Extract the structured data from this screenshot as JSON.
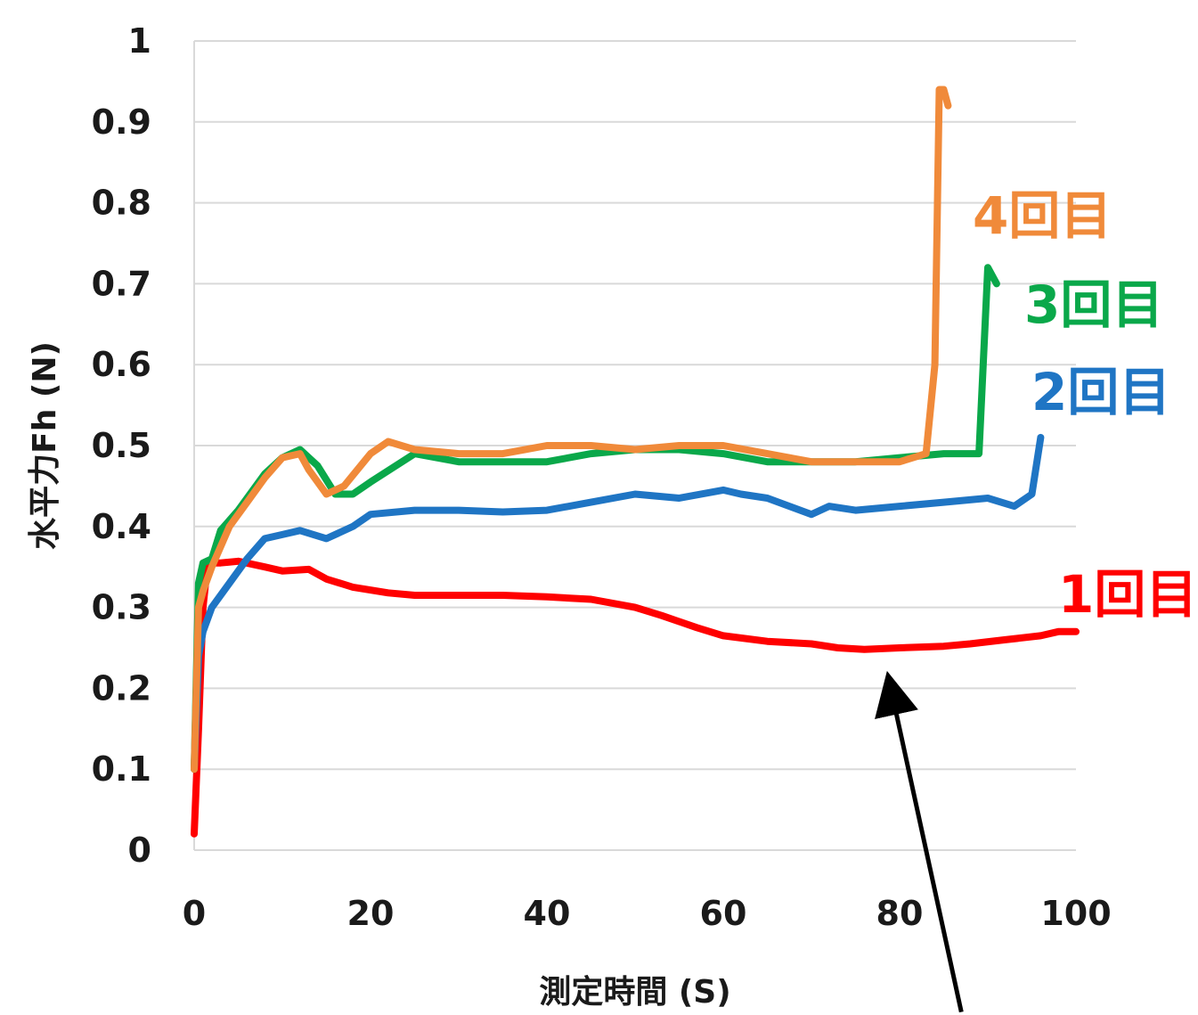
{
  "chart_data": {
    "type": "line",
    "title": "",
    "xlabel": "測定時間 (S)",
    "ylabel": "水平力Fh (N)",
    "xlim": [
      0,
      100
    ],
    "ylim": [
      0,
      1
    ],
    "x_ticks": [
      "0",
      "20",
      "40",
      "60",
      "80",
      "100"
    ],
    "y_ticks": [
      "0",
      "0.1",
      "0.2",
      "0.3",
      "0.4",
      "0.5",
      "0.6",
      "0.7",
      "0.8",
      "0.9",
      "1"
    ],
    "grid": true,
    "legend": "none",
    "series": [
      {
        "name": "1回目",
        "color": "#ff0000",
        "x": [
          0,
          0.5,
          1,
          1.5,
          2,
          3,
          5,
          8,
          10,
          13,
          15,
          18,
          22,
          25,
          30,
          35,
          40,
          45,
          50,
          53,
          57,
          60,
          65,
          70,
          73,
          76,
          80,
          85,
          88,
          92,
          96,
          98,
          100
        ],
        "y": [
          0.02,
          0.15,
          0.3,
          0.35,
          0.355,
          0.355,
          0.357,
          0.35,
          0.345,
          0.347,
          0.335,
          0.325,
          0.318,
          0.315,
          0.315,
          0.315,
          0.313,
          0.31,
          0.3,
          0.29,
          0.275,
          0.265,
          0.258,
          0.255,
          0.25,
          0.248,
          0.25,
          0.252,
          0.255,
          0.26,
          0.265,
          0.27,
          0.27
        ]
      },
      {
        "name": "2回目",
        "color": "#1f75c4",
        "x": [
          0,
          0.5,
          1,
          2,
          4,
          6,
          8,
          10,
          12,
          15,
          18,
          20,
          25,
          30,
          35,
          40,
          45,
          50,
          55,
          60,
          62,
          65,
          70,
          72,
          75,
          80,
          85,
          90,
          93,
          95,
          96
        ],
        "y": [
          0.1,
          0.24,
          0.27,
          0.3,
          0.33,
          0.36,
          0.385,
          0.39,
          0.395,
          0.385,
          0.4,
          0.415,
          0.42,
          0.42,
          0.418,
          0.42,
          0.43,
          0.44,
          0.435,
          0.445,
          0.44,
          0.435,
          0.415,
          0.425,
          0.42,
          0.425,
          0.43,
          0.435,
          0.425,
          0.44,
          0.51
        ]
      },
      {
        "name": "3回目",
        "color": "#0aa84a",
        "x": [
          0,
          0.5,
          1,
          2,
          3,
          5,
          8,
          10,
          12,
          14,
          16,
          18,
          20,
          25,
          30,
          35,
          40,
          45,
          50,
          55,
          60,
          65,
          70,
          75,
          80,
          85,
          88,
          89,
          90,
          91
        ],
        "y": [
          0.1,
          0.33,
          0.355,
          0.36,
          0.395,
          0.42,
          0.465,
          0.485,
          0.495,
          0.475,
          0.44,
          0.44,
          0.455,
          0.49,
          0.48,
          0.48,
          0.48,
          0.49,
          0.495,
          0.495,
          0.49,
          0.48,
          0.48,
          0.48,
          0.485,
          0.49,
          0.49,
          0.49,
          0.72,
          0.7
        ]
      },
      {
        "name": "4回目",
        "color": "#f08a3a",
        "x": [
          0,
          0.5,
          1,
          2,
          4,
          6,
          8,
          10,
          12,
          13,
          15,
          17,
          20,
          22,
          25,
          30,
          35,
          40,
          45,
          50,
          55,
          60,
          65,
          70,
          75,
          80,
          83,
          84,
          84.5,
          85,
          85.5
        ],
        "y": [
          0.1,
          0.3,
          0.32,
          0.35,
          0.4,
          0.43,
          0.46,
          0.485,
          0.49,
          0.47,
          0.44,
          0.45,
          0.49,
          0.505,
          0.495,
          0.49,
          0.49,
          0.5,
          0.5,
          0.495,
          0.5,
          0.5,
          0.49,
          0.48,
          0.48,
          0.48,
          0.49,
          0.6,
          0.94,
          0.94,
          0.92
        ]
      }
    ],
    "annotations": [
      {
        "type": "arrow",
        "from": [
          87,
          -0.2
        ],
        "to": [
          79,
          0.2
        ],
        "color": "#000000"
      }
    ]
  }
}
